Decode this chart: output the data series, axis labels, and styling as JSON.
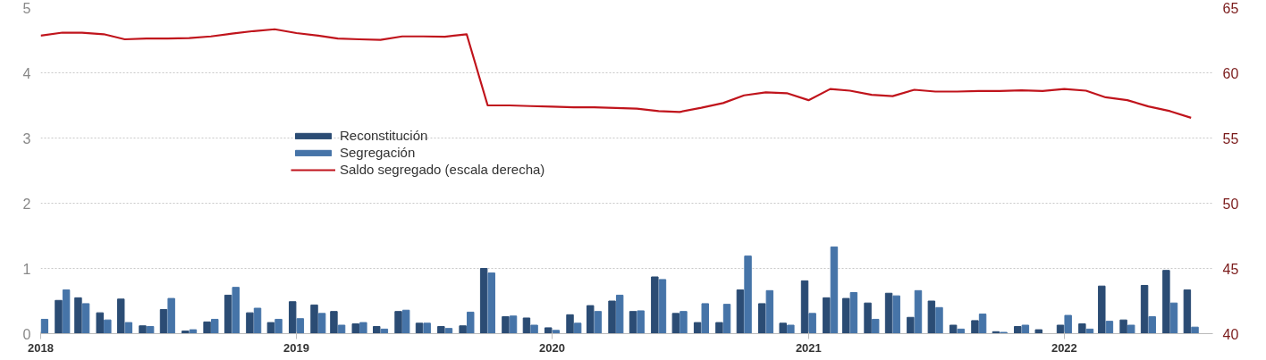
{
  "chart_data": {
    "type": "bar",
    "x": [
      "2018-01",
      "2018-02",
      "2018-03",
      "2018-04",
      "2018-05",
      "2018-06",
      "2018-07",
      "2018-08",
      "2018-09",
      "2018-10",
      "2018-11",
      "2018-12",
      "2019-01",
      "2019-02",
      "2019-03",
      "2019-04",
      "2019-05",
      "2019-06",
      "2019-07",
      "2019-08",
      "2019-09",
      "2019-10",
      "2019-11",
      "2019-12",
      "2020-01",
      "2020-02",
      "2020-03",
      "2020-04",
      "2020-05",
      "2020-06",
      "2020-07",
      "2020-08",
      "2020-09",
      "2020-10",
      "2020-11",
      "2020-12",
      "2021-01",
      "2021-02",
      "2021-03",
      "2021-04",
      "2021-05",
      "2021-06",
      "2021-07",
      "2021-08",
      "2021-09",
      "2021-10",
      "2021-11",
      "2021-12",
      "2022-01",
      "2022-02",
      "2022-03",
      "2022-04",
      "2022-05",
      "2022-06",
      "2022-07"
    ],
    "series": [
      {
        "name": "Reconstitución",
        "color": "#2b4c74",
        "values": [
          null,
          0.51,
          0.55,
          0.32,
          0.53,
          0.12,
          0.37,
          0.04,
          0.18,
          0.59,
          0.32,
          0.17,
          0.49,
          0.44,
          0.34,
          0.15,
          0.11,
          0.34,
          0.16,
          0.11,
          0.12,
          1.0,
          0.26,
          0.24,
          0.09,
          0.29,
          0.43,
          0.5,
          0.34,
          0.87,
          0.31,
          0.17,
          0.17,
          0.67,
          0.46,
          0.16,
          0.81,
          0.55,
          0.54,
          0.47,
          0.62,
          0.25,
          0.5,
          0.13,
          0.2,
          0.03,
          0.11,
          0.06,
          0.13,
          0.15,
          0.73,
          0.21,
          0.74,
          0.97,
          0.67
        ]
      },
      {
        "name": "Segregación",
        "color": "#4674a8",
        "values": [
          0.22,
          0.67,
          0.46,
          0.21,
          0.17,
          0.11,
          0.54,
          0.06,
          0.22,
          0.71,
          0.39,
          0.22,
          0.23,
          0.31,
          0.13,
          0.17,
          0.07,
          0.36,
          0.16,
          0.08,
          0.33,
          0.93,
          0.27,
          0.13,
          0.05,
          0.16,
          0.34,
          0.59,
          0.35,
          0.83,
          0.34,
          0.46,
          0.45,
          1.19,
          0.66,
          0.13,
          0.31,
          1.33,
          0.63,
          0.22,
          0.58,
          0.66,
          0.4,
          0.07,
          0.3,
          0.02,
          0.13,
          0.0,
          0.28,
          0.07,
          0.19,
          0.13,
          0.26,
          0.47,
          0.1
        ]
      },
      {
        "name": "Saldo segregado (escala derecha)",
        "type": "line",
        "axis": "y2",
        "color": "#c0141c",
        "values": [
          62.85,
          63.08,
          63.08,
          62.96,
          62.57,
          62.63,
          62.63,
          62.66,
          62.79,
          63.01,
          63.2,
          63.34,
          63.05,
          62.85,
          62.63,
          62.57,
          62.53,
          62.79,
          62.79,
          62.76,
          62.96,
          57.5,
          57.5,
          57.45,
          57.4,
          57.35,
          57.35,
          57.3,
          57.25,
          57.06,
          57.0,
          57.32,
          57.68,
          58.27,
          58.5,
          58.44,
          57.9,
          58.76,
          58.63,
          58.31,
          58.21,
          58.7,
          58.56,
          58.56,
          58.6,
          58.6,
          58.66,
          58.6,
          58.76,
          58.63,
          58.12,
          57.9,
          57.42,
          57.06,
          56.55
        ]
      }
    ],
    "xlim": [
      "2018-01",
      "2022-08"
    ],
    "xticks": [
      "2018",
      "2019",
      "2020",
      "2021",
      "2022"
    ],
    "ylim": [
      0,
      5
    ],
    "yticks": [
      0,
      1,
      2,
      3,
      4,
      5
    ],
    "y2lim": [
      40,
      65
    ],
    "y2ticks": [
      40,
      45,
      50,
      55,
      60,
      65
    ],
    "grid": "y",
    "legend": "center"
  }
}
